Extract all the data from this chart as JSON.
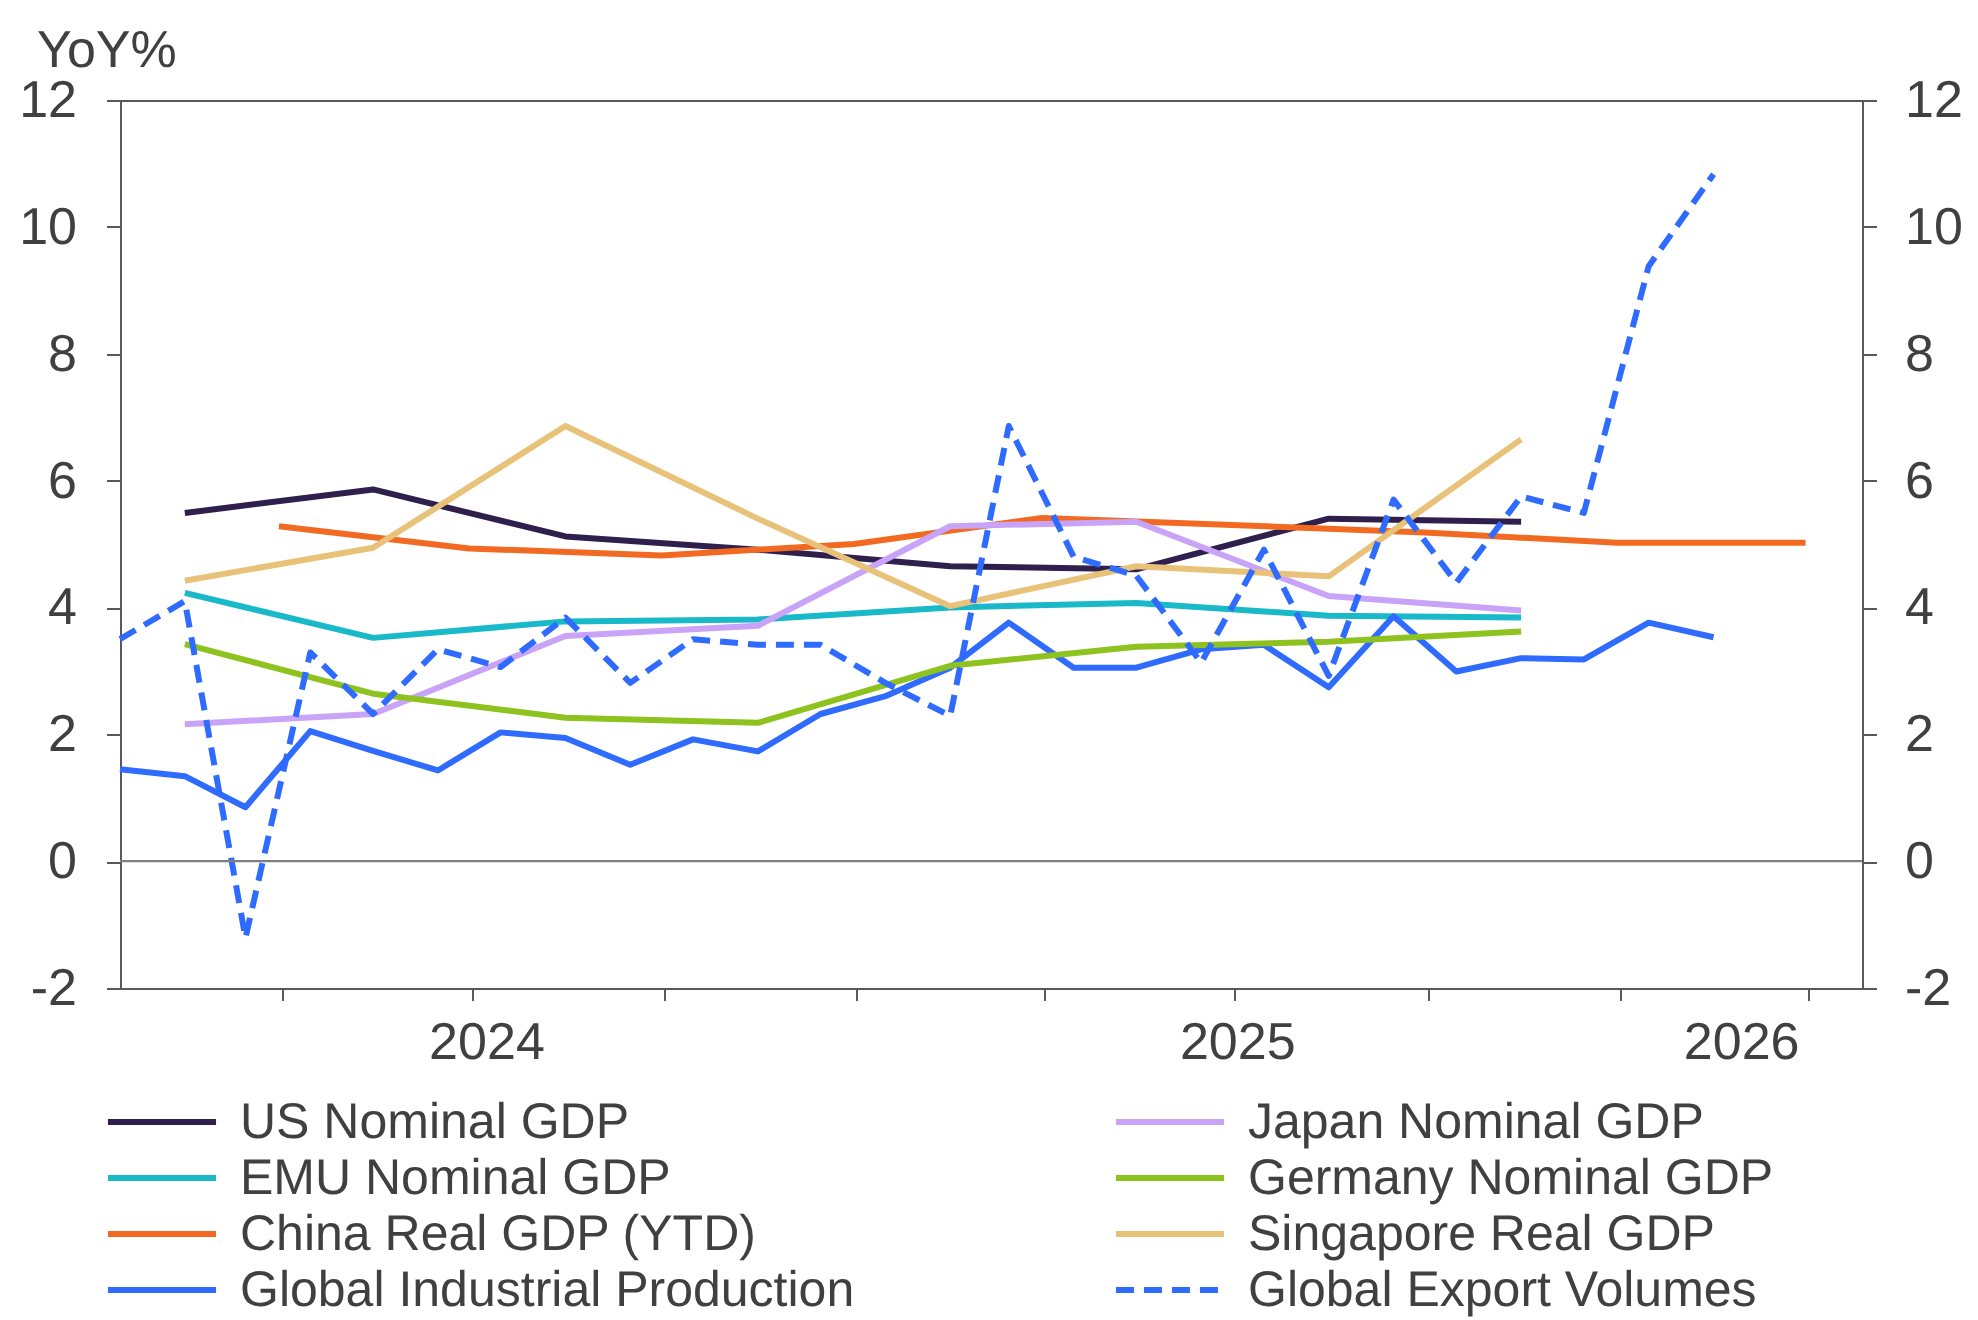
{
  "chart_data": {
    "type": "line",
    "ylabel": "YoY%",
    "xlim": [
      "2024-01-15",
      "2026-04-27"
    ],
    "xticks": [
      {
        "value": "2024-04-01",
        "label": null
      },
      {
        "value": "2024-07-01",
        "label": null
      },
      {
        "value": "2024-07-08",
        "label": "2024"
      },
      {
        "value": "2024-10-01",
        "label": null
      },
      {
        "value": "2025-01-01",
        "label": null
      },
      {
        "value": "2025-04-01",
        "label": null
      },
      {
        "value": "2025-07-01",
        "label": null
      },
      {
        "value": "2025-07-02",
        "label": "2025"
      },
      {
        "value": "2025-10-01",
        "label": null
      },
      {
        "value": "2026-01-01",
        "label": null
      },
      {
        "value": "2026-02-28",
        "label": "2026"
      },
      {
        "value": "2026-04-01",
        "label": null
      }
    ],
    "ylim": [
      -2,
      12
    ],
    "yticks": [
      -2,
      0,
      2,
      4,
      6,
      8,
      10,
      12
    ],
    "y2lim": [
      -2,
      12
    ],
    "y2ticks": [
      -2,
      0,
      2,
      4,
      6,
      8,
      10,
      12
    ],
    "legend": "bottom",
    "ref_lines": [
      {
        "axis": "y",
        "value": 0,
        "color": "#7f7f7f"
      }
    ],
    "series": [
      {
        "name": "US Nominal GDP",
        "color": "#2e1f4d",
        "x": [
          "2024-02-15",
          "2024-05-15",
          "2024-08-15",
          "2024-11-15",
          "2025-02-15",
          "2025-05-15",
          "2025-08-15",
          "2025-11-15"
        ],
        "values": [
          5.49,
          5.86,
          5.12,
          4.91,
          4.65,
          4.6,
          5.4,
          5.35
        ]
      },
      {
        "name": "EMU Nominal GDP",
        "color": "#19b9c9",
        "x": [
          "2024-02-15",
          "2024-05-15",
          "2024-08-15",
          "2024-11-15",
          "2025-02-15",
          "2025-05-15",
          "2025-08-15",
          "2025-11-15"
        ],
        "values": [
          4.23,
          3.52,
          3.78,
          3.81,
          4.0,
          4.07,
          3.87,
          3.84
        ]
      },
      {
        "name": "China Real GDP (YTD)",
        "color": "#f26a21",
        "x": [
          "2024-03-31",
          "2024-06-30",
          "2024-09-30",
          "2024-12-31",
          "2025-03-31",
          "2025-06-30",
          "2025-09-30",
          "2025-12-31",
          "2026-03-31"
        ],
        "values": [
          5.28,
          4.93,
          4.82,
          5.0,
          5.41,
          5.3,
          5.18,
          5.02,
          5.02
        ]
      },
      {
        "name": "Global Industrial Production",
        "color": "#2f6bff",
        "x": [
          "2024-01-15",
          "2024-02-15",
          "2024-03-15",
          "2024-04-15",
          "2024-05-15",
          "2024-06-15",
          "2024-07-15",
          "2024-08-15",
          "2024-09-15",
          "2024-10-15",
          "2024-11-15",
          "2024-12-15",
          "2025-01-15",
          "2025-02-15",
          "2025-03-15",
          "2025-04-15",
          "2025-05-15",
          "2025-06-15",
          "2025-07-15",
          "2025-08-15",
          "2025-09-15",
          "2025-10-15",
          "2025-11-15",
          "2025-12-15",
          "2026-01-15",
          "2026-02-15"
        ],
        "values": [
          1.45,
          1.34,
          0.85,
          2.05,
          1.74,
          1.43,
          2.03,
          1.94,
          1.52,
          1.92,
          1.73,
          2.32,
          2.6,
          3.05,
          3.76,
          3.05,
          3.05,
          3.34,
          3.41,
          2.74,
          3.86,
          2.99,
          3.2,
          3.18,
          3.76,
          3.53
        ]
      },
      {
        "name": "Japan Nominal GDP",
        "color": "#c9a3f7",
        "x": [
          "2024-02-15",
          "2024-05-15",
          "2024-08-15",
          "2024-11-15",
          "2025-02-15",
          "2025-05-15",
          "2025-08-15",
          "2025-11-15"
        ],
        "values": [
          2.16,
          2.32,
          3.55,
          3.71,
          5.28,
          5.35,
          4.18,
          3.95
        ]
      },
      {
        "name": "Germany Nominal GDP",
        "color": "#8dc21f",
        "x": [
          "2024-02-15",
          "2024-05-15",
          "2024-08-15",
          "2024-11-15",
          "2025-02-15",
          "2025-05-15",
          "2025-08-15",
          "2025-11-15"
        ],
        "values": [
          3.42,
          2.64,
          2.26,
          2.18,
          3.08,
          3.38,
          3.46,
          3.62
        ]
      },
      {
        "name": "Singapore Real GDP",
        "color": "#e9c27a",
        "x": [
          "2024-02-15",
          "2024-05-15",
          "2024-08-15",
          "2024-11-15",
          "2025-02-15",
          "2025-05-15",
          "2025-08-15",
          "2025-11-15"
        ],
        "values": [
          4.42,
          4.94,
          6.86,
          5.4,
          4.02,
          4.65,
          4.49,
          6.65
        ]
      },
      {
        "name": "Global Export Volumes",
        "color": "#2f6bff",
        "line_style": "dashed",
        "x": [
          "2024-01-15",
          "2024-02-15",
          "2024-03-15",
          "2024-04-15",
          "2024-05-15",
          "2024-06-15",
          "2024-07-15",
          "2024-08-15",
          "2024-09-15",
          "2024-10-15",
          "2024-11-15",
          "2024-12-15",
          "2025-01-15",
          "2025-02-15",
          "2025-03-15",
          "2025-04-15",
          "2025-05-15",
          "2025-06-15",
          "2025-07-15",
          "2025-08-15",
          "2025-09-15",
          "2025-10-15",
          "2025-11-15",
          "2025-12-15",
          "2026-01-15",
          "2026-02-15"
        ],
        "values": [
          3.5,
          4.1,
          -1.21,
          3.29,
          2.32,
          3.34,
          3.06,
          3.84,
          2.81,
          3.5,
          3.41,
          3.41,
          2.81,
          2.29,
          6.86,
          4.8,
          4.5,
          3.13,
          4.91,
          2.92,
          5.7,
          4.39,
          5.75,
          5.49,
          9.38,
          10.83
        ]
      }
    ]
  }
}
